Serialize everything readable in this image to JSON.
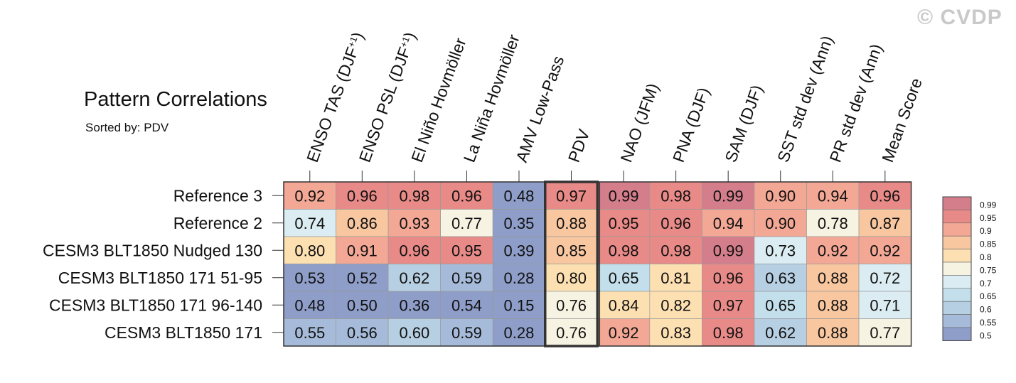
{
  "watermark": "© CVDP",
  "chart_data": {
    "type": "heatmap",
    "title": "Pattern Correlations",
    "subtitle": "Sorted by: PDV",
    "columns": [
      "ENSO TAS (DJF+1)",
      "ENSO PSL (DJF+1)",
      "El Niño Hovmöller",
      "La Niña Hovmöller",
      "AMV Low-Pass",
      "PDV",
      "NAO (JFM)",
      "PNA (DJF)",
      "SAM (DJF)",
      "SST std dev (Ann)",
      "PR std dev (Ann)",
      "Mean Score"
    ],
    "rows": [
      "Reference 3",
      "Reference 2",
      "CESM3 BLT1850 Nudged 130",
      "CESM3 BLT1850 171 51-95",
      "CESM3 BLT1850 171 96-140",
      "CESM3 BLT1850 171"
    ],
    "values": [
      [
        0.92,
        0.96,
        0.98,
        0.96,
        0.48,
        0.97,
        0.99,
        0.98,
        0.99,
        0.9,
        0.94,
        0.96
      ],
      [
        0.74,
        0.86,
        0.93,
        0.77,
        0.35,
        0.88,
        0.95,
        0.96,
        0.94,
        0.9,
        0.78,
        0.87
      ],
      [
        0.8,
        0.91,
        0.96,
        0.95,
        0.39,
        0.85,
        0.98,
        0.98,
        0.99,
        0.73,
        0.92,
        0.92
      ],
      [
        0.53,
        0.52,
        0.62,
        0.59,
        0.28,
        0.8,
        0.65,
        0.81,
        0.96,
        0.63,
        0.88,
        0.72
      ],
      [
        0.48,
        0.5,
        0.36,
        0.54,
        0.15,
        0.76,
        0.84,
        0.82,
        0.97,
        0.65,
        0.88,
        0.71
      ],
      [
        0.55,
        0.56,
        0.6,
        0.59,
        0.28,
        0.76,
        0.92,
        0.83,
        0.98,
        0.62,
        0.88,
        0.77
      ]
    ],
    "highlighted_column": "PDV",
    "separator_after_column": "PDV",
    "colorbar": {
      "levels": [
        "0.99",
        "0.95",
        "0.9",
        "0.85",
        "0.8",
        "0.75",
        "0.7",
        "0.65",
        "0.6",
        "0.55",
        "0.5"
      ],
      "colors": [
        "#d47d8b",
        "#e88a87",
        "#f3a795",
        "#f8c7a0",
        "#fde0b2",
        "#f7f3e2",
        "#dbedf2",
        "#c3dfeb",
        "#b6cfe2",
        "#a6bbd9",
        "#8e9ec9"
      ]
    }
  }
}
